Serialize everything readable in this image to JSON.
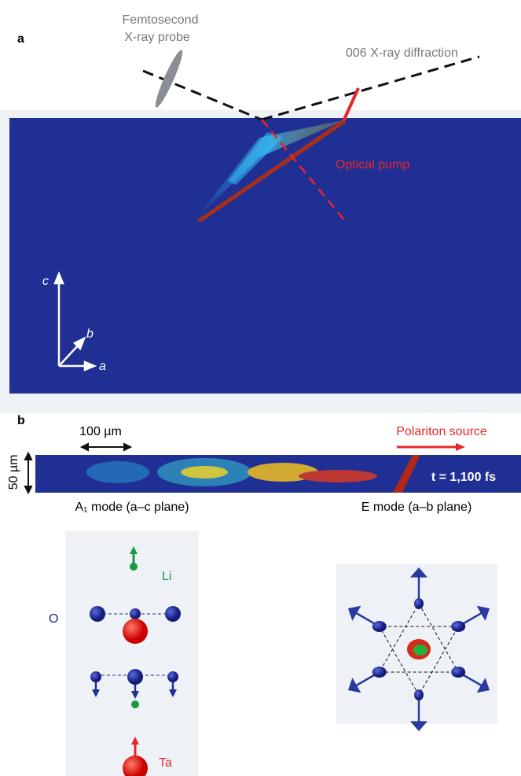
{
  "panel_a": {
    "label": "a",
    "probe_label_1": "Femtosecond",
    "probe_label_2": "X-ray probe",
    "diffraction_label": "006 X-ray diffraction",
    "pump_label": "Optical pump",
    "axis_c": "c",
    "axis_b": "b",
    "axis_a": "a"
  },
  "panel_b": {
    "label": "b",
    "scale_x": "100 µm",
    "scale_y": "50 µm",
    "source_label": "Polariton source",
    "time_label": "t = 1,100 fs"
  },
  "modes": {
    "a1_title": "A₁ mode (a–c plane)",
    "e_title": "E mode (a–b plane)",
    "o_label": "O",
    "li_label": "Li",
    "ta_label": "Ta"
  }
}
